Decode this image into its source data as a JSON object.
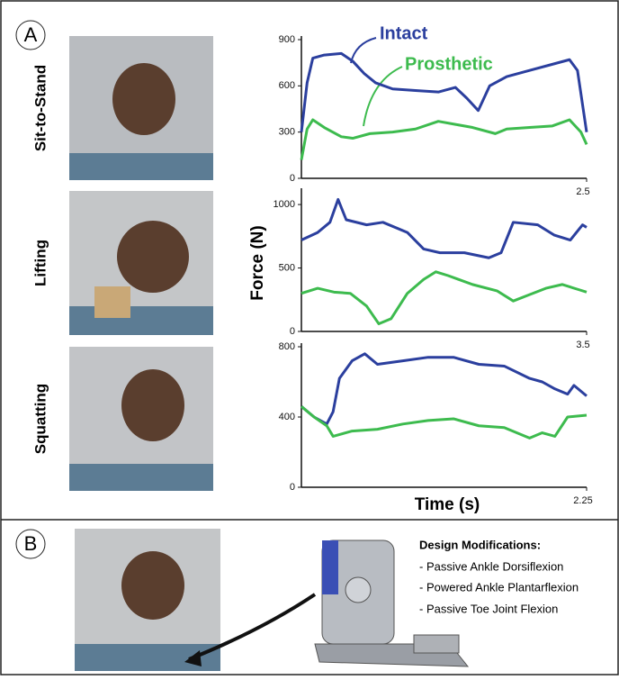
{
  "panels": {
    "a": "A",
    "b": "B"
  },
  "row_labels": [
    "Sit-to-Stand",
    "Lifting",
    "Squatting"
  ],
  "design": {
    "title": "Design Modifications:",
    "items": [
      "- Passive Ankle Dorsiflexion",
      "- Powered Ankle Plantarflexion",
      "- Passive Toe Joint Flexion"
    ]
  },
  "chart_data": [
    {
      "type": "line",
      "annotations": [
        "Intact",
        "Prosthetic"
      ],
      "xlim": [
        0,
        2.5
      ],
      "xticks": [
        2.5
      ],
      "ylim": [
        0,
        900
      ],
      "yticks": [
        0,
        300,
        600,
        900
      ],
      "series": [
        {
          "name": "Intact",
          "color": "#2b3f9e",
          "x": [
            0,
            0.05,
            0.1,
            0.2,
            0.35,
            0.45,
            0.55,
            0.65,
            0.8,
            1.0,
            1.2,
            1.35,
            1.45,
            1.55,
            1.65,
            1.8,
            2.0,
            2.2,
            2.35,
            2.42,
            2.5
          ],
          "values": [
            300,
            620,
            780,
            800,
            810,
            760,
            680,
            620,
            580,
            570,
            560,
            590,
            520,
            440,
            600,
            660,
            700,
            740,
            770,
            700,
            300
          ]
        },
        {
          "name": "Prosthetic",
          "color": "#3dbb4e",
          "x": [
            0,
            0.05,
            0.1,
            0.2,
            0.35,
            0.45,
            0.6,
            0.8,
            1.0,
            1.2,
            1.35,
            1.5,
            1.7,
            1.8,
            2.0,
            2.2,
            2.35,
            2.45,
            2.5
          ],
          "values": [
            120,
            320,
            380,
            330,
            270,
            260,
            290,
            300,
            320,
            370,
            350,
            330,
            290,
            320,
            330,
            340,
            380,
            300,
            220
          ]
        }
      ]
    },
    {
      "type": "line",
      "ylabel": "Force (N)",
      "xlim": [
        0,
        3.5
      ],
      "xticks": [
        3.5
      ],
      "ylim": [
        0,
        1100
      ],
      "yticks": [
        0,
        500,
        1000
      ],
      "series": [
        {
          "name": "Intact",
          "color": "#2b3f9e",
          "x": [
            0,
            0.2,
            0.35,
            0.45,
            0.55,
            0.8,
            1.0,
            1.3,
            1.5,
            1.7,
            2.0,
            2.3,
            2.45,
            2.6,
            2.9,
            3.1,
            3.3,
            3.45,
            3.5
          ],
          "values": [
            720,
            780,
            860,
            1040,
            880,
            840,
            860,
            780,
            650,
            620,
            620,
            580,
            620,
            860,
            840,
            760,
            720,
            840,
            820
          ]
        },
        {
          "name": "Prosthetic",
          "color": "#3dbb4e",
          "x": [
            0,
            0.2,
            0.4,
            0.6,
            0.8,
            0.95,
            1.1,
            1.3,
            1.5,
            1.65,
            1.8,
            2.1,
            2.4,
            2.6,
            2.8,
            3.0,
            3.2,
            3.4,
            3.5
          ],
          "values": [
            300,
            340,
            310,
            300,
            200,
            60,
            100,
            300,
            410,
            470,
            440,
            370,
            320,
            240,
            290,
            340,
            370,
            330,
            310
          ]
        }
      ]
    },
    {
      "type": "line",
      "xlabel": "Time (s)",
      "xlim": [
        0,
        2.25
      ],
      "xticks": [
        2.25
      ],
      "ylim": [
        0,
        800
      ],
      "yticks": [
        0,
        400,
        800
      ],
      "series": [
        {
          "name": "Intact",
          "color": "#2b3f9e",
          "x": [
            0,
            0.1,
            0.2,
            0.25,
            0.3,
            0.4,
            0.5,
            0.6,
            0.8,
            1.0,
            1.2,
            1.4,
            1.6,
            1.8,
            1.9,
            2.0,
            2.1,
            2.15,
            2.25
          ],
          "values": [
            460,
            400,
            360,
            430,
            620,
            720,
            760,
            700,
            720,
            740,
            740,
            700,
            690,
            620,
            600,
            560,
            530,
            580,
            520
          ]
        },
        {
          "name": "Prosthetic",
          "color": "#3dbb4e",
          "x": [
            0,
            0.1,
            0.2,
            0.25,
            0.4,
            0.6,
            0.8,
            1.0,
            1.2,
            1.4,
            1.6,
            1.8,
            1.9,
            2.0,
            2.1,
            2.25
          ],
          "values": [
            460,
            400,
            350,
            290,
            320,
            330,
            360,
            380,
            390,
            350,
            340,
            280,
            310,
            290,
            400,
            410
          ]
        }
      ]
    }
  ]
}
